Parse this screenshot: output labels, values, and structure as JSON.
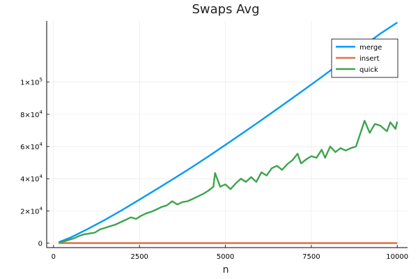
{
  "chart_data": {
    "type": "line",
    "title": "Swaps Avg",
    "xlabel": "n",
    "ylabel": "",
    "xlim": [
      -200,
      10300
    ],
    "ylim": [
      -2800,
      138000
    ],
    "grid": true,
    "legend_position": "top-right",
    "x_ticks": [
      {
        "value": 0,
        "label": "0"
      },
      {
        "value": 2500,
        "label": "2500"
      },
      {
        "value": 5000,
        "label": "5000"
      },
      {
        "value": 7500,
        "label": "7500"
      },
      {
        "value": 10000,
        "label": "10000"
      }
    ],
    "y_ticks": [
      {
        "value": 0,
        "label": "0",
        "exp": ""
      },
      {
        "value": 20000,
        "label": "2×10",
        "exp": "4"
      },
      {
        "value": 40000,
        "label": "4×10",
        "exp": "4"
      },
      {
        "value": 60000,
        "label": "6×10",
        "exp": "4"
      },
      {
        "value": 80000,
        "label": "8×10",
        "exp": "4"
      },
      {
        "value": 100000,
        "label": "1×10",
        "exp": "5"
      }
    ],
    "series": [
      {
        "name": "merge",
        "color": "#009af9",
        "x": [
          150,
          500,
          1000,
          1500,
          2000,
          2500,
          3000,
          3500,
          4000,
          4500,
          5000,
          5500,
          6000,
          6500,
          7000,
          7500,
          8000,
          8500,
          9000,
          9500,
          10000
        ],
        "y": [
          600,
          3500,
          8800,
          14500,
          20600,
          27000,
          33500,
          40100,
          46800,
          53800,
          61000,
          68300,
          75700,
          83200,
          90800,
          98500,
          106300,
          114200,
          122100,
          130000,
          137000
        ]
      },
      {
        "name": "insert",
        "color": "#e26f46",
        "x": [
          150,
          10000
        ],
        "y": [
          0,
          0
        ]
      },
      {
        "name": "quick",
        "color": "#3da44d",
        "x": [
          150,
          300,
          450,
          600,
          750,
          900,
          1050,
          1200,
          1350,
          1500,
          1650,
          1800,
          1950,
          2100,
          2250,
          2400,
          2550,
          2700,
          2850,
          3000,
          3150,
          3300,
          3450,
          3600,
          3750,
          3900,
          4050,
          4200,
          4350,
          4500,
          4650,
          4700,
          4850,
          5000,
          5150,
          5300,
          5450,
          5600,
          5750,
          5900,
          6050,
          6200,
          6350,
          6500,
          6650,
          6800,
          6950,
          7100,
          7200,
          7350,
          7500,
          7650,
          7800,
          7900,
          8050,
          8200,
          8350,
          8500,
          8650,
          8800,
          9050,
          9200,
          9350,
          9500,
          9700,
          9800,
          9950,
          10000
        ],
        "y": [
          300,
          1000,
          2000,
          3000,
          4500,
          5500,
          6000,
          6500,
          8500,
          9500,
          10500,
          11500,
          13000,
          14500,
          16000,
          15000,
          17000,
          18500,
          19500,
          21000,
          22500,
          23500,
          26000,
          24000,
          25500,
          26000,
          27500,
          29000,
          30500,
          32500,
          35000,
          43500,
          35000,
          36500,
          33500,
          37000,
          40000,
          38000,
          41000,
          38000,
          44000,
          42000,
          46500,
          48000,
          45500,
          49000,
          51500,
          55500,
          49500,
          52000,
          54000,
          53000,
          58000,
          53000,
          60000,
          56500,
          59000,
          57500,
          59000,
          60000,
          76000,
          68500,
          74000,
          73000,
          69500,
          75000,
          71000,
          75500
        ]
      }
    ]
  }
}
